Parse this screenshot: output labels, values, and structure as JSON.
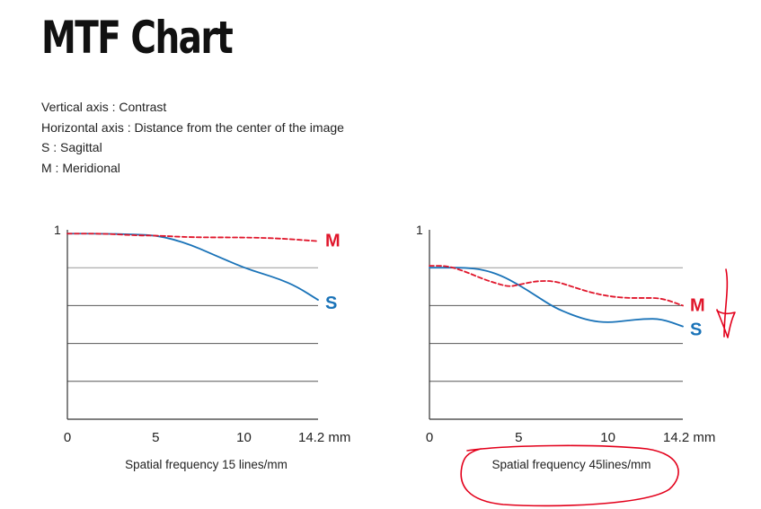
{
  "title": "MTF Chart",
  "notes": [
    "Vertical axis : Contrast",
    "Horizontal axis : Distance from the center of the image",
    "S : Sagittal",
    "M : Meridional"
  ],
  "colors": {
    "meridional": "#e0162b",
    "sagittal": "#1a73b8",
    "annotation": "#e3001b",
    "gridline": "#999999",
    "axis": "#333333"
  },
  "chart_data": [
    {
      "type": "line",
      "title": "",
      "caption": "Spatial frequency 15 lines/mm",
      "xlabel": "",
      "ylabel": "",
      "xlim": [
        0,
        14.2
      ],
      "ylim": [
        0,
        1
      ],
      "y_tick_labels": [
        "1"
      ],
      "x_ticks": [
        0,
        5,
        10,
        14.2
      ],
      "x_tick_labels": [
        "0",
        "5",
        "10",
        "14.2 mm"
      ],
      "grid": "horizontal",
      "series": [
        {
          "name": "M",
          "style": "dashed",
          "x": [
            0,
            2,
            4,
            5,
            7,
            10,
            12,
            14.2
          ],
          "y": [
            0.98,
            0.98,
            0.97,
            0.97,
            0.96,
            0.96,
            0.955,
            0.94
          ]
        },
        {
          "name": "S",
          "x": [
            0,
            2,
            4,
            5,
            6,
            7,
            8,
            9,
            10,
            11,
            12,
            13,
            14.2
          ],
          "y": [
            0.98,
            0.98,
            0.975,
            0.97,
            0.95,
            0.92,
            0.88,
            0.84,
            0.8,
            0.77,
            0.74,
            0.7,
            0.63
          ]
        }
      ]
    },
    {
      "type": "line",
      "title": "",
      "caption": "Spatial frequency 45lines/mm",
      "xlabel": "",
      "ylabel": "",
      "xlim": [
        0,
        14.2
      ],
      "ylim": [
        0,
        1
      ],
      "y_tick_labels": [
        "1"
      ],
      "x_ticks": [
        0,
        5,
        10,
        14.2
      ],
      "x_tick_labels": [
        "0",
        "5",
        "10",
        "14.2 mm"
      ],
      "grid": "horizontal",
      "series": [
        {
          "name": "M",
          "style": "dashed",
          "x": [
            0,
            1,
            2,
            3,
            4,
            4.5,
            5,
            6,
            7,
            8,
            9,
            10,
            11,
            12,
            13,
            14.2
          ],
          "y": [
            0.81,
            0.81,
            0.78,
            0.74,
            0.71,
            0.7,
            0.71,
            0.73,
            0.73,
            0.7,
            0.67,
            0.65,
            0.64,
            0.64,
            0.64,
            0.6
          ]
        },
        {
          "name": "S",
          "x": [
            0,
            1,
            2,
            3,
            4,
            5,
            6,
            7,
            8,
            9,
            10,
            11,
            12,
            13,
            14.2
          ],
          "y": [
            0.8,
            0.8,
            0.8,
            0.79,
            0.76,
            0.71,
            0.65,
            0.59,
            0.55,
            0.52,
            0.51,
            0.52,
            0.53,
            0.53,
            0.49
          ]
        }
      ]
    }
  ]
}
